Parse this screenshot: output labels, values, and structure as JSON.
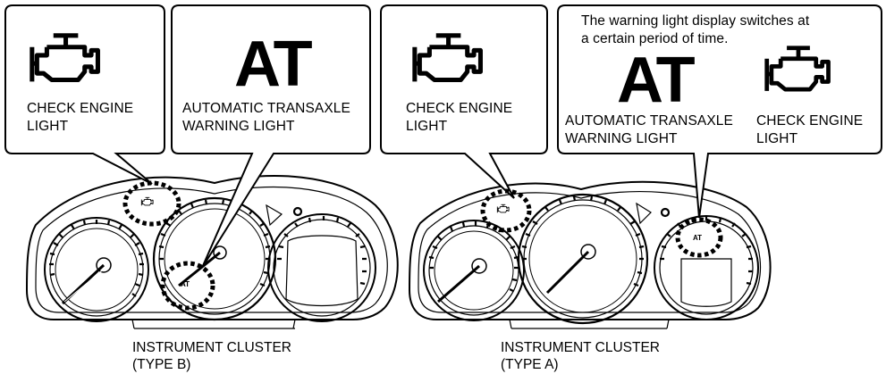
{
  "type_b": {
    "caption_line1": "INSTRUMENT CLUSTER",
    "caption_line2": "(TYPE B)",
    "callout_engine": {
      "line1": "CHECK ENGINE",
      "line2": "LIGHT",
      "icon": "check-engine-icon"
    },
    "callout_at": {
      "symbol": "AT",
      "line1": "AUTOMATIC TRANSAXLE",
      "line2": "WARNING LIGHT"
    },
    "cluster_at_mark": "AT"
  },
  "type_a": {
    "caption_line1": "INSTRUMENT CLUSTER",
    "caption_line2": "(TYPE A)",
    "callout_engine": {
      "line1": "CHECK ENGINE",
      "line2": "LIGHT",
      "icon": "check-engine-icon"
    },
    "callout_switch": {
      "note_line1": "The warning light display switches at",
      "note_line2": "a certain period of time.",
      "symbol": "AT",
      "at_line1": "AUTOMATIC TRANSAXLE",
      "at_line2": "WARNING LIGHT",
      "engine_line1": "CHECK ENGINE",
      "engine_line2": "LIGHT"
    },
    "cluster_at_mark": "AT"
  }
}
